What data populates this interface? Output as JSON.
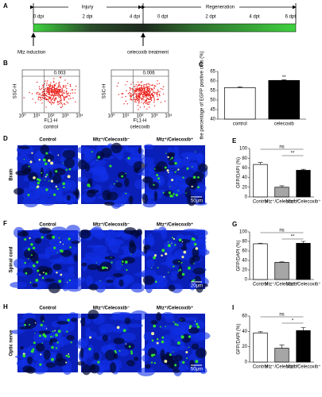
{
  "timeline": {
    "label": "A",
    "phases": [
      "Injury",
      "Regeneration"
    ],
    "ticks": [
      "0 dpi",
      "2 dpi",
      "4 dpi",
      "0 dpt",
      "2 dpt",
      "4 dpt",
      "6 dpt"
    ],
    "events": [
      "Mtz induction",
      "celecoxib treatment"
    ]
  },
  "flow_cytometry": {
    "label": "B",
    "x_label": "FL1-H",
    "y_label": "SSC-H",
    "axis_ticks": [
      "10⁰",
      "10¹",
      "10²",
      "10³",
      "10⁴"
    ],
    "plots": [
      {
        "gate_value": 0.003,
        "caption": "control"
      },
      {
        "gate_value": 0.006,
        "caption": "celecoxib"
      }
    ]
  },
  "micrographs": [
    {
      "label": "D",
      "tissue": "Brain",
      "scale_bar": "50μm",
      "columns": [
        "Control",
        "Mtz⁺/Celecoxib⁻",
        "Mtz⁺/Celecoxib⁺"
      ]
    },
    {
      "label": "F",
      "tissue": "Spinal cord",
      "scale_bar": "20μm",
      "columns": [
        "Control",
        "Mtz⁺/Celecoxib⁻",
        "Mtz⁺/Celecoxib⁺"
      ]
    },
    {
      "label": "H",
      "tissue": "Optic nerve",
      "scale_bar": "50μm",
      "columns": [
        "Control",
        "Mtz⁺/Celecoxib⁻",
        "Mtz⁺/Celecoxib⁺"
      ]
    }
  ],
  "chart_data": [
    {
      "type": "bar",
      "label": "C",
      "y_label": "the percentage of EGFP positive cells (%)",
      "categories": [
        "control",
        "celecoxib"
      ],
      "values": [
        56.5,
        60.3
      ],
      "errors": [
        0.4,
        0.3
      ],
      "colors": [
        "#ffffff",
        "#000000"
      ],
      "ylim": [
        40,
        65
      ],
      "yticks": [
        40,
        45,
        50,
        55,
        60,
        65
      ],
      "annotations": [
        "**"
      ]
    },
    {
      "type": "bar",
      "label": "E",
      "y_label": "GFP/DAPI (%)",
      "categories": [
        "Control",
        "Mtz⁺/Celecoxib⁻",
        "Mtz⁺/Celecoxib⁺"
      ],
      "values": [
        67,
        20,
        55
      ],
      "errors": [
        4,
        3,
        2
      ],
      "colors": [
        "#ffffff",
        "#a6a6a6",
        "#000000"
      ],
      "ylim": [
        0,
        100
      ],
      "yticks": [
        0,
        20,
        40,
        60,
        80,
        100
      ],
      "annotations": [
        "ns",
        "**"
      ]
    },
    {
      "type": "bar",
      "label": "G",
      "y_label": "GFP/DAPI (%)",
      "categories": [
        "Control",
        "Mtz⁺/Celecoxib⁻",
        "Mtz⁺/Celecoxib⁺"
      ],
      "values": [
        75,
        36,
        76
      ],
      "errors": [
        1,
        1,
        4
      ],
      "colors": [
        "#ffffff",
        "#a6a6a6",
        "#000000"
      ],
      "ylim": [
        0,
        100
      ],
      "yticks": [
        0,
        20,
        40,
        60,
        80,
        100
      ],
      "annotations": [
        "ns",
        "**"
      ]
    },
    {
      "type": "bar",
      "label": "I",
      "y_label": "GFP/DAPI (%)",
      "categories": [
        "Control",
        "Mtz⁺/Celecoxib⁻",
        "Mtz⁺/Celecoxib⁺"
      ],
      "values": [
        38,
        18,
        41
      ],
      "errors": [
        1.5,
        4,
        4
      ],
      "colors": [
        "#ffffff",
        "#a6a6a6",
        "#000000"
      ],
      "ylim": [
        0,
        60
      ],
      "yticks": [
        0,
        20,
        40,
        60
      ],
      "annotations": [
        "ns",
        "*"
      ]
    }
  ]
}
